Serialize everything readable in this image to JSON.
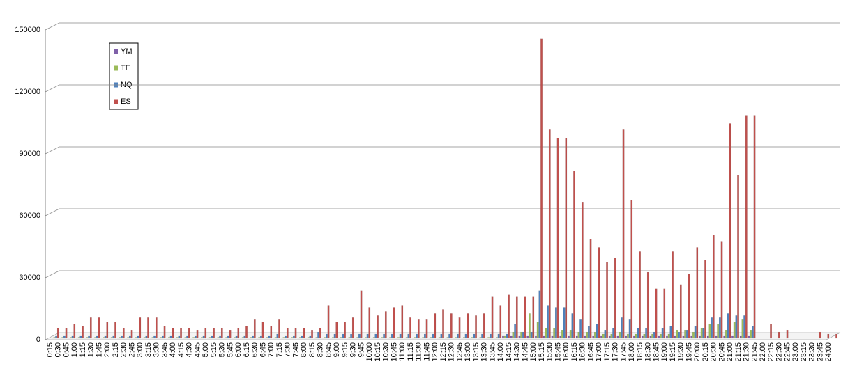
{
  "chart_data": {
    "type": "bar",
    "categories": [
      "0:15",
      "0:30",
      "0:45",
      "1:00",
      "1:15",
      "1:30",
      "1:45",
      "2:00",
      "2:15",
      "2:30",
      "2:45",
      "3:00",
      "3:15",
      "3:30",
      "3:45",
      "4:00",
      "4:15",
      "4:30",
      "4:45",
      "5:00",
      "5:15",
      "5:30",
      "5:45",
      "6:00",
      "6:15",
      "6:30",
      "6:45",
      "7:00",
      "7:15",
      "7:30",
      "7:45",
      "8:00",
      "8:15",
      "8:30",
      "8:45",
      "9:00",
      "9:15",
      "9:30",
      "9:45",
      "10:00",
      "10:15",
      "10:30",
      "10:45",
      "11:00",
      "11:15",
      "11:30",
      "11:45",
      "12:00",
      "12:15",
      "12:30",
      "12:45",
      "13:00",
      "13:15",
      "13:30",
      "13:45",
      "14:00",
      "14:15",
      "14:30",
      "14:45",
      "15:00",
      "15:15",
      "15:30",
      "15:45",
      "16:00",
      "16:15",
      "16:30",
      "16:45",
      "17:00",
      "17:15",
      "17:30",
      "17:45",
      "18:00",
      "18:15",
      "18:30",
      "18:45",
      "19:00",
      "19:15",
      "19:30",
      "19:45",
      "20:00",
      "20:15",
      "20:30",
      "20:45",
      "21:00",
      "21:15",
      "21:30",
      "21:45",
      "22:00",
      "22:15",
      "22:30",
      "22:45",
      "23:00",
      "23:15",
      "23:30",
      "23:45",
      "24:00"
    ],
    "series": [
      {
        "name": "YM",
        "color": "#7f60a8",
        "values": [
          200,
          200,
          200,
          200,
          200,
          200,
          200,
          200,
          200,
          200,
          200,
          200,
          200,
          200,
          200,
          200,
          200,
          200,
          200,
          200,
          200,
          200,
          200,
          200,
          200,
          200,
          200,
          200,
          200,
          200,
          200,
          200,
          200,
          200,
          200,
          200,
          200,
          200,
          200,
          200,
          200,
          200,
          200,
          200,
          200,
          200,
          200,
          200,
          200,
          200,
          200,
          200,
          200,
          200,
          200,
          1000,
          1000,
          1000,
          1000,
          1000,
          1000,
          1000,
          1000,
          1000,
          1000,
          1000,
          1000,
          1000,
          1000,
          1000,
          1000,
          1000,
          1000,
          1000,
          1000,
          1000,
          1000,
          1000,
          1000,
          1000,
          1000,
          1000,
          1000,
          1000,
          1000,
          1000,
          0,
          0,
          0,
          0,
          0,
          0,
          0,
          0,
          0,
          0
        ]
      },
      {
        "name": "TF",
        "color": "#9bbb59",
        "values": [
          500,
          500,
          500,
          500,
          500,
          500,
          500,
          500,
          500,
          500,
          500,
          500,
          500,
          500,
          500,
          500,
          500,
          500,
          500,
          500,
          500,
          500,
          500,
          500,
          500,
          500,
          500,
          500,
          500,
          500,
          500,
          500,
          500,
          500,
          500,
          500,
          500,
          500,
          500,
          500,
          500,
          500,
          500,
          500,
          500,
          500,
          500,
          500,
          500,
          500,
          500,
          500,
          500,
          500,
          500,
          1000,
          3000,
          3000,
          12000,
          8000,
          5000,
          5000,
          4000,
          4000,
          3000,
          3000,
          3000,
          2000,
          2000,
          3000,
          2000,
          2000,
          2000,
          2000,
          2000,
          2000,
          4000,
          4000,
          3000,
          5000,
          7000,
          7000,
          4000,
          8000,
          9000,
          4000,
          0,
          0,
          0,
          0,
          0,
          0,
          0,
          0,
          0,
          0
        ]
      },
      {
        "name": "NQ",
        "color": "#4f81bd",
        "values": [
          1000,
          1000,
          1000,
          1000,
          1000,
          1000,
          1000,
          1000,
          1000,
          1000,
          1000,
          1000,
          1000,
          1000,
          1000,
          1000,
          1000,
          1000,
          1000,
          1000,
          1000,
          1000,
          1000,
          1000,
          1000,
          1000,
          1000,
          2000,
          1000,
          1000,
          1000,
          1000,
          3000,
          2000,
          2000,
          2000,
          2000,
          2000,
          2000,
          2000,
          2000,
          2000,
          2000,
          2000,
          2000,
          2000,
          2000,
          2000,
          2000,
          2000,
          2000,
          2000,
          2000,
          2000,
          2000,
          2000,
          7000,
          3000,
          3000,
          23000,
          16000,
          15000,
          15000,
          12000,
          9000,
          6000,
          7000,
          4000,
          5000,
          10000,
          9000,
          5000,
          5000,
          3000,
          5000,
          6000,
          3000,
          4000,
          6000,
          5000,
          10000,
          10000,
          12000,
          11000,
          11000,
          6000,
          0,
          0,
          0,
          0,
          0,
          0,
          0,
          0,
          0,
          0
        ]
      },
      {
        "name": "ES",
        "color": "#c0504d",
        "values": [
          5000,
          5000,
          7000,
          6000,
          10000,
          10000,
          8000,
          8000,
          5000,
          4000,
          10000,
          10000,
          10000,
          6000,
          5000,
          5000,
          5000,
          4000,
          5000,
          5000,
          5000,
          4000,
          5000,
          6000,
          9000,
          8000,
          6000,
          9000,
          5000,
          5000,
          5000,
          4000,
          5000,
          16000,
          8000,
          8000,
          10000,
          23000,
          15000,
          11000,
          13000,
          15000,
          16000,
          10000,
          9000,
          9000,
          12000,
          14000,
          12000,
          10000,
          12000,
          11000,
          12000,
          20000,
          16000,
          21000,
          20000,
          20000,
          20000,
          145000,
          101000,
          97000,
          97000,
          81000,
          66000,
          48000,
          44000,
          37000,
          39000,
          101000,
          67000,
          42000,
          32000,
          24000,
          24000,
          42000,
          26000,
          31000,
          44000,
          38000,
          50000,
          47000,
          104000,
          79000,
          108000,
          108000,
          0,
          7000,
          3000,
          4000,
          0,
          0,
          0,
          3000,
          2000,
          2000
        ]
      }
    ],
    "ylim": [
      0,
      150000
    ],
    "yticks": [
      0,
      30000,
      60000,
      90000,
      120000,
      150000
    ],
    "grid": true,
    "legend": "upper left"
  }
}
